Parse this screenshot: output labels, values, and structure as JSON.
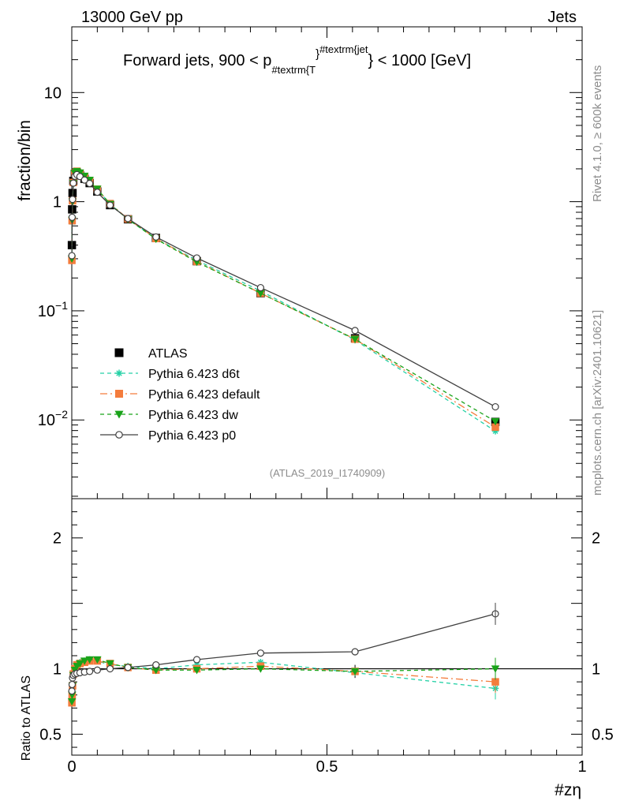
{
  "header": {
    "left": "13000 GeV pp",
    "right": "Jets",
    "rivet": "Rivet 4.1.0, ≥ 600k events",
    "mcplots": "mcplots.cern.ch [arXiv:2401.10621]",
    "analysis": "(ATLAS_2019_I1740909)"
  },
  "chart_data": [
    {
      "panel": "main",
      "type": "line",
      "yscale": "log",
      "title": "Forward jets, 900 < p_T^jet < 1000 [GeV]",
      "title_parts": {
        "pre": "Forward jets, 900 < p",
        "sub": "#textrm{T",
        "sup": "#textrm{jet",
        "post": "} < 1000 [GeV]",
        "brace": "}"
      },
      "ylabel": "fraction/bin",
      "xlim": [
        0,
        1
      ],
      "ylim": [
        0.0019,
        40
      ],
      "yticks": [
        {
          "value": 10,
          "base": "10",
          "exp": ""
        },
        {
          "value": 1,
          "base": "1",
          "exp": ""
        },
        {
          "value": 0.1,
          "base": "10",
          "exp": "−1"
        },
        {
          "value": 0.01,
          "base": "10",
          "exp": "−2"
        }
      ],
      "x": [
        0.0002,
        0.0007,
        0.0015,
        0.003,
        0.006,
        0.01,
        0.016,
        0.025,
        0.035,
        0.05,
        0.075,
        0.11,
        0.165,
        0.245,
        0.37,
        0.555,
        0.83
      ],
      "series": [
        {
          "name": "ATLAS",
          "color": "#000000",
          "marker": "square",
          "dash": "",
          "values": [
            0.4,
            0.85,
            1.2,
            1.55,
            1.8,
            1.83,
            1.75,
            1.62,
            1.48,
            1.24,
            0.93,
            0.69,
            0.465,
            0.285,
            0.145,
            0.056,
            0.0096
          ]
        },
        {
          "name": "Pythia 6.423 d6t",
          "color": "#25d1a6",
          "marker": "star",
          "dash": "5,4",
          "values": [
            0.29,
            0.65,
            1.0,
            1.5,
            1.83,
            1.9,
            1.84,
            1.72,
            1.58,
            1.3,
            0.95,
            0.69,
            0.46,
            0.29,
            0.152,
            0.054,
            0.0079
          ]
        },
        {
          "name": "Pythia 6.423 default",
          "color": "#f47c3c",
          "marker": "square",
          "dash": "9,4,2,4",
          "values": [
            0.29,
            0.67,
            1.02,
            1.5,
            1.83,
            1.9,
            1.82,
            1.7,
            1.56,
            1.3,
            0.96,
            0.695,
            0.46,
            0.283,
            0.145,
            0.055,
            0.0086
          ]
        },
        {
          "name": "Pythia 6.423 dw",
          "color": "#19a319",
          "marker": "tri-down",
          "dash": "5,4",
          "values": [
            0.3,
            0.68,
            1.0,
            1.47,
            1.83,
            1.9,
            1.84,
            1.72,
            1.58,
            1.31,
            0.95,
            0.69,
            0.455,
            0.28,
            0.145,
            0.055,
            0.0097
          ]
        },
        {
          "name": "Pythia 6.423 p0",
          "color": "#404040",
          "marker": "circle",
          "dash": "",
          "values": [
            0.32,
            0.72,
            1.05,
            1.48,
            1.71,
            1.77,
            1.7,
            1.58,
            1.47,
            1.22,
            0.93,
            0.7,
            0.475,
            0.305,
            0.163,
            0.066,
            0.0132
          ]
        }
      ]
    },
    {
      "panel": "ratio",
      "type": "line",
      "ylabel": "Ratio to ATLAS",
      "xlabel": "#zη",
      "xlim": [
        0,
        1
      ],
      "ylim": [
        0.34,
        2.3
      ],
      "xticks": [
        {
          "value": 0,
          "label": "0"
        },
        {
          "value": 0.5,
          "label": "0.5"
        },
        {
          "value": 1,
          "label": "1"
        }
      ],
      "yticks": [
        {
          "value": 2,
          "label": "2"
        },
        {
          "value": 1,
          "label": "1"
        },
        {
          "value": 0.5,
          "label": "0.5"
        }
      ],
      "x": [
        0.0002,
        0.0007,
        0.0015,
        0.003,
        0.006,
        0.01,
        0.016,
        0.025,
        0.035,
        0.05,
        0.075,
        0.11,
        0.165,
        0.245,
        0.37,
        0.555,
        0.83
      ],
      "series": [
        {
          "name": "Pythia 6.423 d6t",
          "color": "#25d1a6",
          "marker": "star",
          "dash": "5,4",
          "values": [
            0.74,
            0.78,
            0.86,
            0.96,
            1.0,
            1.03,
            1.05,
            1.06,
            1.07,
            1.06,
            1.03,
            1.02,
            1.0,
            1.03,
            1.05,
            0.97,
            0.85
          ]
        },
        {
          "name": "Pythia 6.423 default",
          "color": "#f47c3c",
          "marker": "square",
          "dash": "9,4,2,4",
          "values": [
            0.74,
            0.79,
            0.87,
            0.96,
            1.0,
            1.03,
            1.04,
            1.05,
            1.06,
            1.06,
            1.04,
            1.01,
            0.99,
            1.0,
            1.02,
            0.98,
            0.9
          ]
        },
        {
          "name": "Pythia 6.423 dw",
          "color": "#19a319",
          "marker": "tri-down",
          "dash": "5,4",
          "values": [
            0.75,
            0.8,
            0.87,
            0.95,
            0.99,
            1.02,
            1.04,
            1.06,
            1.07,
            1.07,
            1.04,
            1.01,
            0.99,
            0.99,
            1.0,
            0.98,
            1.0
          ]
        },
        {
          "name": "Pythia 6.423 p0",
          "color": "#404040",
          "marker": "circle",
          "dash": "",
          "values": [
            0.83,
            0.88,
            0.93,
            0.95,
            0.96,
            0.965,
            0.97,
            0.975,
            0.98,
            0.99,
            1.0,
            1.01,
            1.03,
            1.07,
            1.12,
            1.13,
            1.42
          ]
        }
      ]
    }
  ]
}
